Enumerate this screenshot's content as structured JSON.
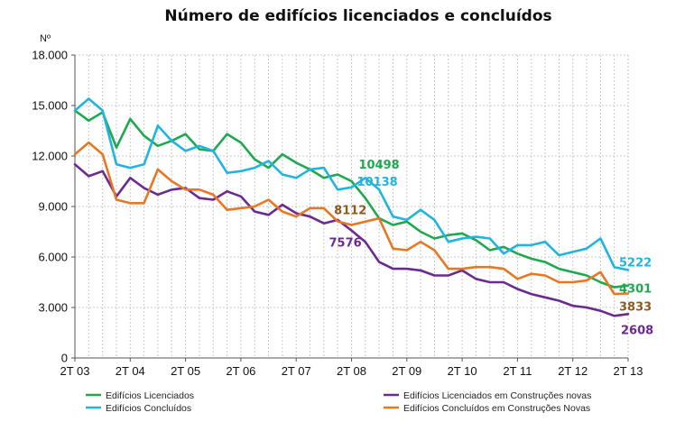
{
  "chart_data": {
    "type": "line",
    "title": "Número de edifícios licenciados e concluídos",
    "ylabel": "Nº",
    "xlabel": "",
    "ylim": [
      0,
      18000
    ],
    "grid": true,
    "legend_position": "bottom",
    "y_ticks": [
      {
        "value": 0,
        "label": "0"
      },
      {
        "value": 3000,
        "label": "3.000"
      },
      {
        "value": 6000,
        "label": "6.000"
      },
      {
        "value": 9000,
        "label": "9.000"
      },
      {
        "value": 12000,
        "label": "12.000"
      },
      {
        "value": 15000,
        "label": "15.000"
      },
      {
        "value": 18000,
        "label": "18.000"
      }
    ],
    "x_ticks": [
      {
        "index": 0,
        "label": "2T 03"
      },
      {
        "index": 4,
        "label": "2T 04"
      },
      {
        "index": 8,
        "label": "2T 05"
      },
      {
        "index": 12,
        "label": "2T 06"
      },
      {
        "index": 16,
        "label": "2T 07"
      },
      {
        "index": 20,
        "label": "2T 08"
      },
      {
        "index": 24,
        "label": "2T 09"
      },
      {
        "index": 28,
        "label": "2T 10"
      },
      {
        "index": 32,
        "label": "2T 11"
      },
      {
        "index": 36,
        "label": "2T 12"
      },
      {
        "index": 40,
        "label": "2T 13"
      }
    ],
    "x": [
      "2T 03",
      "3T 03",
      "4T 03",
      "1T 04",
      "2T 04",
      "3T 04",
      "4T 04",
      "1T 05",
      "2T 05",
      "3T 05",
      "4T 05",
      "1T 06",
      "2T 06",
      "3T 06",
      "4T 06",
      "1T 07",
      "2T 07",
      "3T 07",
      "4T 07",
      "1T 08",
      "2T 08",
      "3T 08",
      "4T 08",
      "1T 09",
      "2T 09",
      "3T 09",
      "4T 09",
      "1T 10",
      "2T 10",
      "3T 10",
      "4T 10",
      "1T 11",
      "2T 11",
      "3T 11",
      "4T 11",
      "1T 12",
      "2T 12",
      "3T 12",
      "4T 12",
      "1T 13",
      "2T 13"
    ],
    "series": [
      {
        "name": "Edifícios Licenciados",
        "color": "#1fa84f",
        "values": [
          14700,
          14100,
          14600,
          12500,
          14200,
          13200,
          12600,
          12900,
          13300,
          12400,
          12300,
          13300,
          12800,
          11800,
          11300,
          12100,
          11600,
          11200,
          10700,
          10900,
          10498,
          9500,
          8300,
          7900,
          8100,
          7500,
          7100,
          7300,
          7400,
          7000,
          6400,
          6600,
          6200,
          5900,
          5700,
          5300,
          5100,
          4900,
          4500,
          4200,
          4301
        ]
      },
      {
        "name": "Edifícios Concluídos",
        "color": "#22b4e0",
        "values": [
          14700,
          15400,
          14700,
          11500,
          11300,
          11500,
          13800,
          12900,
          12300,
          12600,
          12300,
          11000,
          11100,
          11300,
          11700,
          10900,
          10700,
          11200,
          11300,
          10000,
          10138,
          10700,
          10000,
          8400,
          8200,
          8800,
          8200,
          6900,
          7100,
          7200,
          7100,
          6200,
          6700,
          6700,
          6900,
          6100,
          6300,
          6500,
          7100,
          5400,
          5222
        ]
      },
      {
        "name": "Edifícios Licenciados em Construções novas",
        "color": "#6b2a8f",
        "values": [
          11500,
          10800,
          11100,
          9600,
          10700,
          10100,
          9700,
          10000,
          10100,
          9500,
          9400,
          9900,
          9600,
          8700,
          8500,
          9100,
          8600,
          8400,
          8000,
          8200,
          7576,
          6900,
          5700,
          5300,
          5300,
          5200,
          4900,
          4900,
          5200,
          4700,
          4500,
          4500,
          4100,
          3800,
          3600,
          3400,
          3100,
          3000,
          2800,
          2500,
          2608
        ]
      },
      {
        "name": "Edifícios Concluídos em Construções Novas",
        "color": "#e87722",
        "values": [
          12100,
          12800,
          12100,
          9400,
          9200,
          9200,
          11200,
          10500,
          10000,
          10000,
          9700,
          8800,
          8900,
          9000,
          9400,
          8700,
          8400,
          8900,
          8900,
          8112,
          7900,
          8100,
          8300,
          6500,
          6400,
          6900,
          6400,
          5300,
          5300,
          5400,
          5400,
          5300,
          4700,
          5000,
          4900,
          4500,
          4500,
          4600,
          5100,
          3800,
          3833
        ]
      }
    ],
    "annotations": [
      {
        "text": "10498",
        "series": 0,
        "index": 20,
        "color": "#1fa84f"
      },
      {
        "text": "10138",
        "series": 1,
        "index": 20,
        "color": "#22b4e0"
      },
      {
        "text": "8112",
        "series": 3,
        "index": 19,
        "color": "#8a5a1e"
      },
      {
        "text": "7576",
        "series": 2,
        "index": 20,
        "color": "#6b2a8f"
      },
      {
        "text": "5222",
        "series": 1,
        "index": 40,
        "color": "#22b4e0"
      },
      {
        "text": "4301",
        "series": 0,
        "index": 40,
        "color": "#1fa84f"
      },
      {
        "text": "3833",
        "series": 3,
        "index": 40,
        "color": "#8a5a1e"
      },
      {
        "text": "2608",
        "series": 2,
        "index": 40,
        "color": "#6b2a8f"
      }
    ]
  }
}
